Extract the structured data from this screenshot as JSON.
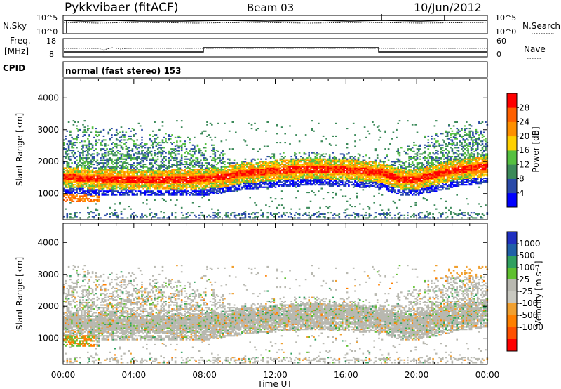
{
  "header": {
    "title": "Pykkvibaer (fitACF)",
    "beam": "Beam 03",
    "date": "10/Jun/2012"
  },
  "panels": {
    "nsky": {
      "left_label": "N.Sky",
      "left_ticks": [
        "10^5",
        "10^0"
      ],
      "right_label": "N.Search",
      "right_ticks": [
        "10^5",
        "10^0"
      ]
    },
    "freq": {
      "left_label_1": "Freq.",
      "left_label_2": "[MHz]",
      "left_ticks": [
        "18",
        "8"
      ],
      "right_label": "Nave",
      "right_ticks": [
        "60",
        "0"
      ]
    },
    "cpid": {
      "label": "CPID",
      "text": "normal (fast stereo) 153"
    }
  },
  "colors": {
    "power_scale": [
      "#0000ff",
      "#2a4aa8",
      "#3c8a5a",
      "#55c040",
      "#ffd000",
      "#ff9000",
      "#ff6000",
      "#ff0000"
    ],
    "velocity_scale": [
      "#2030c0",
      "#2060a8",
      "#30a060",
      "#60c030",
      "#b8b8b0",
      "#c8c8c0",
      "#f0a030",
      "#ff8000",
      "#ff5000",
      "#ff0000"
    ]
  },
  "chart_data": [
    {
      "type": "heatmap",
      "name": "power",
      "ylabel": "Slant Range [km]",
      "x_ticks": [
        "00:00",
        "04:00",
        "08:00",
        "12:00",
        "16:00",
        "20:00",
        "00:00"
      ],
      "xlim_hours": [
        0,
        24
      ],
      "y_ticks": [
        1000,
        2000,
        3000,
        4000
      ],
      "ylim": [
        180,
        4600
      ],
      "colorbar": {
        "label": "Power [dB]",
        "ticks": [
          4,
          8,
          12,
          16,
          20,
          24,
          28
        ],
        "range": [
          0,
          32
        ]
      },
      "main_band_center_km": [
        [
          0,
          1500
        ],
        [
          2,
          1440
        ],
        [
          4,
          1420
        ],
        [
          6,
          1420
        ],
        [
          8,
          1450
        ],
        [
          9,
          1500
        ],
        [
          10,
          1620
        ],
        [
          12,
          1700
        ],
        [
          14,
          1760
        ],
        [
          16,
          1720
        ],
        [
          18,
          1650
        ],
        [
          19,
          1420
        ],
        [
          20,
          1440
        ],
        [
          22,
          1700
        ],
        [
          24,
          1850
        ]
      ],
      "echo_upper_extent_km": [
        [
          0,
          3100
        ],
        [
          4,
          3050
        ],
        [
          8,
          2650
        ],
        [
          10,
          2000
        ],
        [
          12,
          2250
        ],
        [
          14,
          2300
        ],
        [
          16,
          2300
        ],
        [
          18,
          2100
        ],
        [
          20,
          2700
        ],
        [
          22,
          3150
        ],
        [
          24,
          3250
        ]
      ],
      "peak_power_db": 28
    },
    {
      "type": "heatmap",
      "name": "velocity",
      "ylabel": "Slant Range [km]",
      "xlabel": "Time UT",
      "x_ticks": [
        "00:00",
        "04:00",
        "08:00",
        "12:00",
        "16:00",
        "20:00",
        "00:00"
      ],
      "xlim_hours": [
        0,
        24
      ],
      "y_ticks": [
        1000,
        2000,
        3000,
        4000
      ],
      "ylim": [
        180,
        4600
      ],
      "colorbar": {
        "label": "Velocity [m s⁻¹]",
        "ticks": [
          "1000",
          "500",
          "100",
          "25",
          "-25",
          "-100",
          "-500",
          "-1000"
        ]
      },
      "dominant_velocity_class": "-25 to 25"
    }
  ]
}
